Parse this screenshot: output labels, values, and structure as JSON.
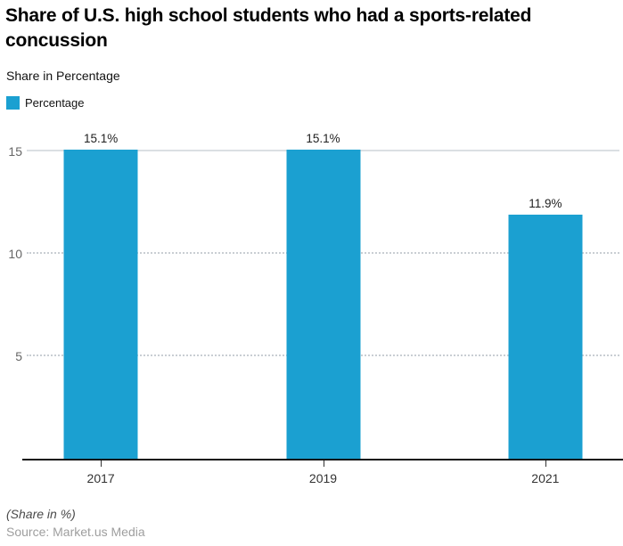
{
  "header": {
    "title": "Share of U.S. high school students who had a sports-related concussion",
    "title_lines": [
      "Share of U.S. high school students who had a sports-related",
      "concussion"
    ],
    "subtitle": "Share in Percentage"
  },
  "legend": {
    "items": [
      {
        "label": "Percentage",
        "color": "#1BA0D1"
      }
    ]
  },
  "chart_data": {
    "type": "bar",
    "title": "Share of U.S. high school students who had a sports-related concussion",
    "subtitle": "Share in Percentage",
    "categories": [
      "2017",
      "2019",
      "2021"
    ],
    "series": [
      {
        "name": "Percentage",
        "values": [
          15.1,
          15.1,
          11.9
        ]
      }
    ],
    "value_labels": [
      "15.1%",
      "15.1%",
      "11.9%"
    ],
    "yticks": [
      5,
      10,
      15
    ],
    "ylim": [
      0,
      15
    ],
    "xlabel": "",
    "ylabel": "",
    "grid": true,
    "legend_position": "top-left",
    "bar_color": "#1BA0D1"
  },
  "colors": {
    "accent": "#1BA0D1",
    "grid_solid": "#dbdfe3",
    "grid_dotted": "#c9ced3",
    "axis": "#111111",
    "tick": "#333333",
    "bar_label": "#1f1f1f",
    "y_label": "#666666",
    "x_label": "#333333"
  },
  "footer": {
    "note": "(Share in %)",
    "source": "Source: Market.us Media"
  }
}
